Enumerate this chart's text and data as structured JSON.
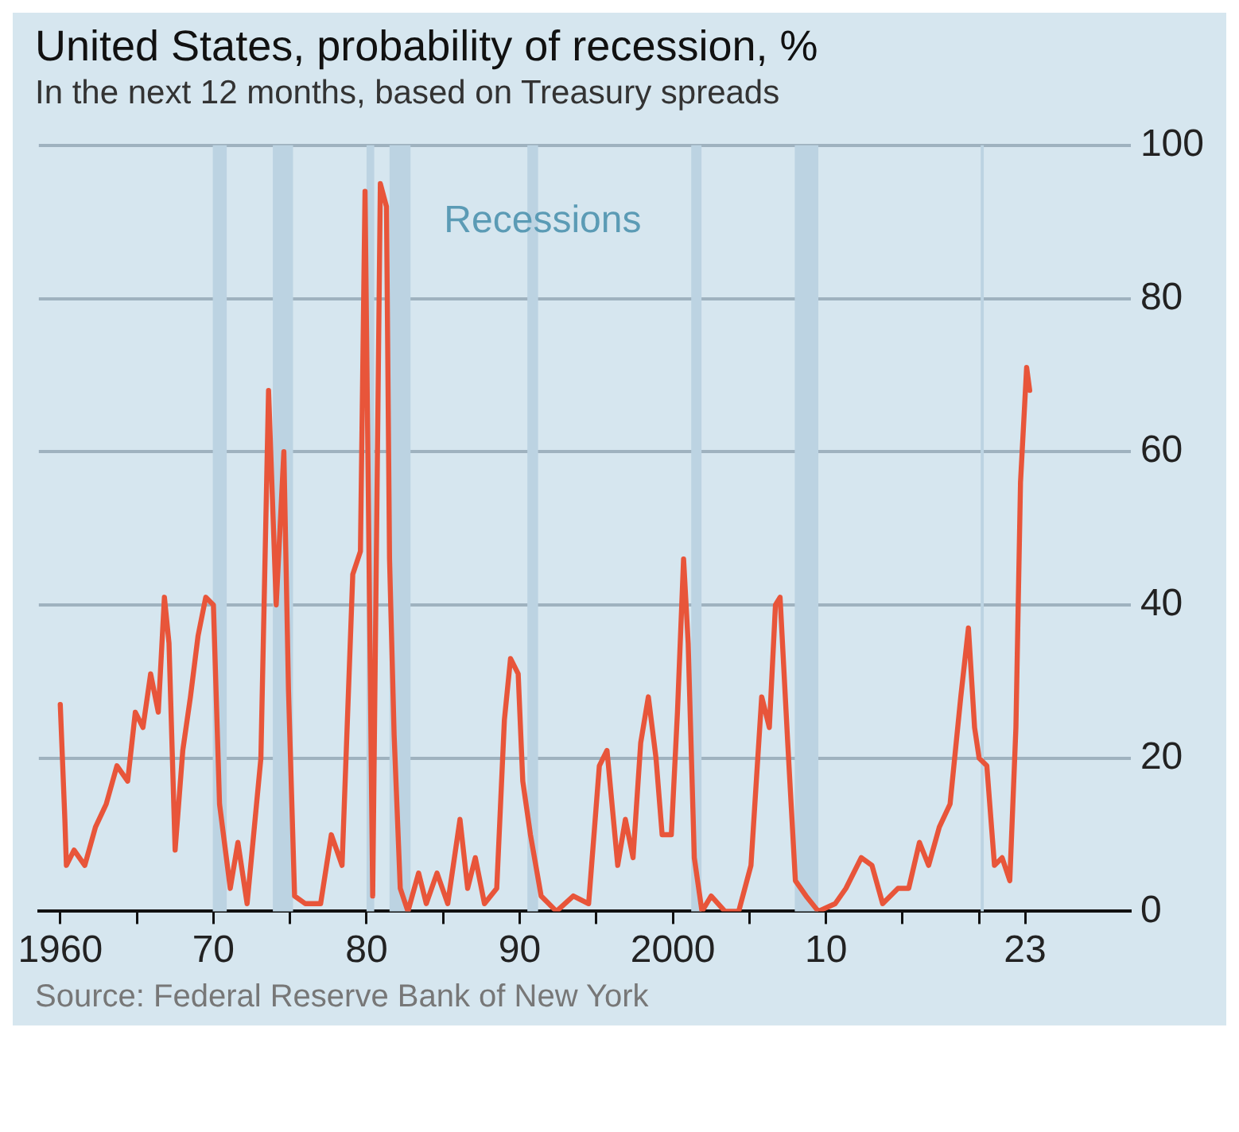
{
  "chart_data": {
    "type": "line",
    "title": "United States, probability of recession, %",
    "subtitle": "In the next 12 months, based on Treasury spreads",
    "annotations": [
      {
        "text": "Recessions",
        "x": 1991.5,
        "y": 90
      },
      "Source: Federal Reserve Bank of New York"
    ],
    "xlim": [
      1958.6,
      2029.9
    ],
    "ylim": [
      0,
      100
    ],
    "xticks": [
      {
        "value": 1960,
        "label": "1960"
      },
      {
        "value": 1965,
        "label": null
      },
      {
        "value": 1970,
        "label": "70"
      },
      {
        "value": 1975,
        "label": null
      },
      {
        "value": 1980,
        "label": "80"
      },
      {
        "value": 1985,
        "label": null
      },
      {
        "value": 1990,
        "label": "90"
      },
      {
        "value": 1995,
        "label": null
      },
      {
        "value": 2000,
        "label": "2000"
      },
      {
        "value": 2005,
        "label": null
      },
      {
        "value": 2010,
        "label": "10"
      },
      {
        "value": 2015,
        "label": null
      },
      {
        "value": 2020,
        "label": null
      },
      {
        "value": 2023,
        "label": "23"
      }
    ],
    "yticks": [
      0,
      20,
      40,
      60,
      80,
      100
    ],
    "grid": "y",
    "marker": "none",
    "line_style": "solid",
    "bands": [
      {
        "axis": "x",
        "from": 1969.96,
        "to": 1970.87,
        "color": "#bcd3e2"
      },
      {
        "axis": "x",
        "from": 1973.88,
        "to": 1975.2,
        "color": "#bcd3e2"
      },
      {
        "axis": "x",
        "from": 1980.0,
        "to": 1980.5,
        "color": "#bcd3e2"
      },
      {
        "axis": "x",
        "from": 1981.5,
        "to": 1982.87,
        "color": "#bcd3e2"
      },
      {
        "axis": "x",
        "from": 1990.5,
        "to": 1991.2,
        "color": "#bcd3e2"
      },
      {
        "axis": "x",
        "from": 2001.2,
        "to": 2001.87,
        "color": "#bcd3e2"
      },
      {
        "axis": "x",
        "from": 2007.96,
        "to": 2009.5,
        "color": "#bcd3e2"
      },
      {
        "axis": "x",
        "from": 2020.1,
        "to": 2020.3,
        "color": "#bcd3e2"
      }
    ],
    "series": [
      {
        "color": "#e8553a",
        "x": [
          1960.0,
          1960.3,
          1960.4,
          1960.9,
          1961.6,
          1962.3,
          1963.0,
          1963.7,
          1964.4,
          1964.9,
          1965.4,
          1965.9,
          1966.4,
          1966.8,
          1967.1,
          1967.5,
          1968.0,
          1968.5,
          1969.0,
          1969.5,
          1970.0,
          1970.4,
          1971.1,
          1971.6,
          1972.2,
          1973.1,
          1973.6,
          1974.1,
          1974.6,
          1974.9,
          1975.3,
          1976.0,
          1977.0,
          1977.7,
          1978.4,
          1979.1,
          1979.6,
          1979.9,
          1980.4,
          1980.9,
          1981.3,
          1981.5,
          1981.8,
          1982.2,
          1982.7,
          1983.4,
          1983.9,
          1984.6,
          1985.3,
          1986.1,
          1986.6,
          1987.1,
          1987.7,
          1988.5,
          1989.0,
          1989.4,
          1989.9,
          1990.2,
          1990.7,
          1991.4,
          1992.4,
          1993.5,
          1994.5,
          1995.2,
          1995.7,
          1996.4,
          1996.9,
          1997.4,
          1997.9,
          1998.4,
          1998.9,
          1999.3,
          1999.9,
          2000.3,
          2000.7,
          2001.0,
          2001.4,
          2001.9,
          2002.5,
          2003.4,
          2004.3,
          2005.1,
          2005.8,
          2006.3,
          2006.7,
          2007.0,
          2007.5,
          2008.0,
          2008.7,
          2009.5,
          2010.6,
          2011.3,
          2012.3,
          2013.0,
          2013.7,
          2014.7,
          2015.4,
          2016.1,
          2016.7,
          2017.4,
          2018.1,
          2018.8,
          2019.3,
          2019.7,
          2020.0,
          2020.5,
          2021.0,
          2021.5,
          2022.0,
          2022.4,
          2022.7,
          2023.1,
          2023.3
        ],
        "values": [
          27,
          12,
          6,
          8,
          6,
          11,
          14,
          19,
          17,
          26,
          24,
          31,
          26,
          41,
          35,
          8,
          21,
          28,
          36,
          41,
          40,
          14,
          3,
          9,
          1,
          20,
          68,
          40,
          60,
          29,
          2,
          1,
          1,
          10,
          6,
          44,
          47,
          94,
          2,
          95,
          92,
          46,
          23,
          3,
          0,
          5,
          1,
          5,
          1,
          12,
          3,
          7,
          1,
          3,
          25,
          33,
          31,
          17,
          10,
          2,
          0,
          2,
          1,
          19,
          21,
          6,
          12,
          7,
          22,
          28,
          20,
          10,
          10,
          26,
          46,
          35,
          7,
          0,
          2,
          0,
          0,
          6,
          28,
          24,
          40,
          41,
          22,
          4,
          2,
          0,
          1,
          3,
          7,
          6,
          1,
          3,
          3,
          9,
          6,
          11,
          14,
          28,
          37,
          24,
          20,
          19,
          6,
          7,
          4,
          24,
          56,
          71,
          68
        ]
      }
    ]
  }
}
